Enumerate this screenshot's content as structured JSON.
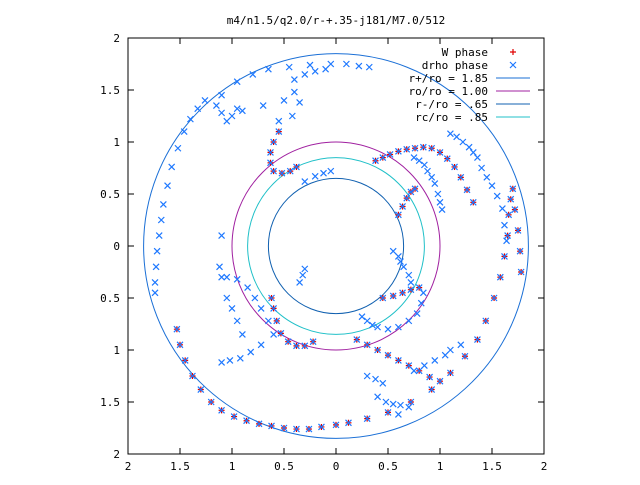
{
  "chart_data": {
    "type": "scatter",
    "title": "m4/n1.5/q2.0/r-+.35-j181/M7.0/512",
    "xlabel": "",
    "ylabel": "",
    "xlim": [
      -2,
      2
    ],
    "ylim": [
      -2,
      2
    ],
    "x_ticks": [
      -2,
      -1.5,
      -1,
      -0.5,
      0,
      0.5,
      1,
      1.5,
      2
    ],
    "y_ticks": [
      2,
      1.5,
      1,
      0.5,
      0,
      -0.5,
      -1,
      -1.5,
      -2
    ],
    "x_tick_labels": [
      "2",
      "1.5",
      "1",
      "0.5",
      "0",
      "0.5",
      "1",
      "1.5",
      "2"
    ],
    "y_tick_labels": [
      "2",
      "1.5",
      "1",
      "0.5",
      "0",
      "0.5",
      "1",
      "1.5",
      "2"
    ],
    "grid": false,
    "legend_position": "top-right",
    "legend": [
      {
        "label": "W phase",
        "marker": "plus",
        "color": "#e00000"
      },
      {
        "label": "drho phase",
        "marker": "x",
        "color": "#1e78ff"
      },
      {
        "label": "r+/ro = 1.85",
        "marker": "line",
        "color": "#1a6fd6"
      },
      {
        "label": "ro/ro = 1.00",
        "marker": "line",
        "color": "#a020a0"
      },
      {
        "label": "r-/ro = .65",
        "marker": "line",
        "color": "#1060b0"
      },
      {
        "label": "rc/ro = .85",
        "marker": "line",
        "color": "#20c0c8"
      }
    ],
    "circles": [
      {
        "name": "r+/ro",
        "r": 1.85,
        "color": "#1a6fd6"
      },
      {
        "name": "ro/ro",
        "r": 1.0,
        "color": "#a020a0"
      },
      {
        "name": "r-/ro",
        "r": 0.65,
        "color": "#1060b0"
      },
      {
        "name": "rc/ro",
        "r": 0.85,
        "color": "#20c0c8"
      }
    ],
    "series": [
      {
        "name": "W phase",
        "marker": "plus",
        "color": "#e00000",
        "points": [
          [
            -1.53,
            -0.8
          ],
          [
            -1.5,
            -0.95
          ],
          [
            -1.45,
            -1.1
          ],
          [
            -1.38,
            -1.25
          ],
          [
            -1.3,
            -1.38
          ],
          [
            -1.2,
            -1.5
          ],
          [
            -1.1,
            -1.58
          ],
          [
            -0.98,
            -1.64
          ],
          [
            -0.86,
            -1.68
          ],
          [
            -0.74,
            -1.71
          ],
          [
            -0.62,
            -1.73
          ],
          [
            -0.5,
            -1.75
          ],
          [
            -0.38,
            -1.76
          ],
          [
            -0.26,
            -1.76
          ],
          [
            -0.14,
            -1.74
          ],
          [
            0.0,
            -1.72
          ],
          [
            0.12,
            -1.7
          ],
          [
            0.3,
            -1.66
          ],
          [
            0.5,
            -1.6
          ],
          [
            0.72,
            -1.5
          ],
          [
            0.92,
            -1.38
          ],
          [
            1.1,
            -1.22
          ],
          [
            1.24,
            -1.06
          ],
          [
            1.36,
            -0.9
          ],
          [
            1.44,
            -0.72
          ],
          [
            1.52,
            -0.5
          ],
          [
            1.58,
            -0.3
          ],
          [
            1.62,
            -0.1
          ],
          [
            1.65,
            0.1
          ],
          [
            1.66,
            0.3
          ],
          [
            1.68,
            0.45
          ],
          [
            1.7,
            0.55
          ],
          [
            1.72,
            0.35
          ],
          [
            1.75,
            0.15
          ],
          [
            1.77,
            -0.05
          ],
          [
            1.78,
            -0.25
          ],
          [
            0.38,
            0.82
          ],
          [
            0.45,
            0.85
          ],
          [
            0.52,
            0.88
          ],
          [
            0.6,
            0.91
          ],
          [
            0.68,
            0.93
          ],
          [
            0.76,
            0.94
          ],
          [
            0.84,
            0.95
          ],
          [
            0.92,
            0.94
          ],
          [
            1.0,
            0.9
          ],
          [
            1.07,
            0.84
          ],
          [
            1.14,
            0.76
          ],
          [
            1.2,
            0.66
          ],
          [
            1.26,
            0.54
          ],
          [
            1.32,
            0.42
          ],
          [
            0.6,
            0.3
          ],
          [
            0.64,
            0.38
          ],
          [
            0.68,
            0.46
          ],
          [
            0.72,
            0.52
          ],
          [
            0.76,
            0.55
          ],
          [
            -0.55,
            1.1
          ],
          [
            -0.6,
            1.0
          ],
          [
            -0.63,
            0.9
          ],
          [
            -0.63,
            0.8
          ],
          [
            -0.6,
            0.72
          ],
          [
            -0.52,
            0.7
          ],
          [
            -0.44,
            0.72
          ],
          [
            -0.38,
            0.76
          ],
          [
            -0.62,
            -0.5
          ],
          [
            -0.6,
            -0.6
          ],
          [
            -0.57,
            -0.72
          ],
          [
            -0.53,
            -0.84
          ],
          [
            -0.46,
            -0.92
          ],
          [
            -0.38,
            -0.96
          ],
          [
            -0.3,
            -0.96
          ],
          [
            -0.22,
            -0.92
          ],
          [
            0.45,
            -0.5
          ],
          [
            0.55,
            -0.48
          ],
          [
            0.64,
            -0.45
          ],
          [
            0.72,
            -0.42
          ],
          [
            0.8,
            -0.4
          ],
          [
            0.2,
            -0.9
          ],
          [
            0.3,
            -0.95
          ],
          [
            0.4,
            -1.0
          ],
          [
            0.5,
            -1.05
          ],
          [
            0.6,
            -1.1
          ],
          [
            0.7,
            -1.15
          ],
          [
            0.8,
            -1.2
          ],
          [
            0.9,
            -1.26
          ],
          [
            1.0,
            -1.3
          ]
        ]
      },
      {
        "name": "drho phase",
        "marker": "x",
        "color": "#1e78ff",
        "points": [
          [
            -1.53,
            -0.8
          ],
          [
            -1.5,
            -0.95
          ],
          [
            -1.45,
            -1.1
          ],
          [
            -1.38,
            -1.25
          ],
          [
            -1.3,
            -1.38
          ],
          [
            -1.2,
            -1.5
          ],
          [
            -1.1,
            -1.58
          ],
          [
            -0.98,
            -1.64
          ],
          [
            -0.86,
            -1.68
          ],
          [
            -0.74,
            -1.71
          ],
          [
            -0.62,
            -1.73
          ],
          [
            -0.5,
            -1.75
          ],
          [
            -0.38,
            -1.76
          ],
          [
            -0.26,
            -1.76
          ],
          [
            -0.14,
            -1.74
          ],
          [
            0.0,
            -1.72
          ],
          [
            0.12,
            -1.7
          ],
          [
            0.3,
            -1.66
          ],
          [
            0.5,
            -1.6
          ],
          [
            0.72,
            -1.5
          ],
          [
            0.92,
            -1.38
          ],
          [
            1.1,
            -1.22
          ],
          [
            1.24,
            -1.06
          ],
          [
            1.36,
            -0.9
          ],
          [
            1.44,
            -0.72
          ],
          [
            1.52,
            -0.5
          ],
          [
            1.58,
            -0.3
          ],
          [
            1.62,
            -0.1
          ],
          [
            1.65,
            0.1
          ],
          [
            1.66,
            0.3
          ],
          [
            1.68,
            0.45
          ],
          [
            1.7,
            0.55
          ],
          [
            1.72,
            0.35
          ],
          [
            1.75,
            0.15
          ],
          [
            1.77,
            -0.05
          ],
          [
            1.78,
            -0.25
          ],
          [
            0.38,
            0.82
          ],
          [
            0.45,
            0.85
          ],
          [
            0.52,
            0.88
          ],
          [
            0.6,
            0.91
          ],
          [
            0.68,
            0.93
          ],
          [
            0.76,
            0.94
          ],
          [
            0.84,
            0.95
          ],
          [
            0.92,
            0.94
          ],
          [
            1.0,
            0.9
          ],
          [
            1.07,
            0.84
          ],
          [
            1.14,
            0.76
          ],
          [
            1.2,
            0.66
          ],
          [
            1.26,
            0.54
          ],
          [
            1.32,
            0.42
          ],
          [
            0.6,
            0.3
          ],
          [
            0.64,
            0.38
          ],
          [
            0.68,
            0.46
          ],
          [
            0.72,
            0.52
          ],
          [
            0.76,
            0.55
          ],
          [
            -0.55,
            1.1
          ],
          [
            -0.6,
            1.0
          ],
          [
            -0.63,
            0.9
          ],
          [
            -0.63,
            0.8
          ],
          [
            -0.6,
            0.72
          ],
          [
            -0.52,
            0.7
          ],
          [
            -0.44,
            0.72
          ],
          [
            -0.38,
            0.76
          ],
          [
            -0.62,
            -0.5
          ],
          [
            -0.6,
            -0.6
          ],
          [
            -0.57,
            -0.72
          ],
          [
            -0.53,
            -0.84
          ],
          [
            -0.46,
            -0.92
          ],
          [
            -0.38,
            -0.96
          ],
          [
            -0.3,
            -0.96
          ],
          [
            -0.22,
            -0.92
          ],
          [
            0.45,
            -0.5
          ],
          [
            0.55,
            -0.48
          ],
          [
            0.64,
            -0.45
          ],
          [
            0.72,
            -0.42
          ],
          [
            0.8,
            -0.4
          ],
          [
            0.2,
            -0.9
          ],
          [
            0.3,
            -0.95
          ],
          [
            0.4,
            -1.0
          ],
          [
            0.5,
            -1.05
          ],
          [
            0.6,
            -1.1
          ],
          [
            0.7,
            -1.15
          ],
          [
            0.8,
            -1.2
          ],
          [
            0.9,
            -1.26
          ],
          [
            1.0,
            -1.3
          ],
          [
            -1.74,
            -0.45
          ],
          [
            -1.74,
            -0.35
          ],
          [
            -1.73,
            -0.2
          ],
          [
            -1.72,
            -0.05
          ],
          [
            -1.7,
            0.1
          ],
          [
            -1.68,
            0.25
          ],
          [
            -1.66,
            0.4
          ],
          [
            -1.62,
            0.58
          ],
          [
            -1.58,
            0.76
          ],
          [
            -1.52,
            0.94
          ],
          [
            -1.46,
            1.1
          ],
          [
            -1.4,
            1.22
          ],
          [
            -1.33,
            1.32
          ],
          [
            -1.26,
            1.4
          ],
          [
            -1.1,
            1.45
          ],
          [
            -0.95,
            1.58
          ],
          [
            -0.8,
            1.65
          ],
          [
            -0.65,
            1.7
          ],
          [
            -0.45,
            1.72
          ],
          [
            -0.25,
            1.74
          ],
          [
            -0.05,
            1.75
          ],
          [
            0.1,
            1.75
          ],
          [
            0.22,
            1.73
          ],
          [
            0.32,
            1.72
          ],
          [
            -0.4,
            1.6
          ],
          [
            -0.3,
            1.65
          ],
          [
            -0.2,
            1.68
          ],
          [
            -0.1,
            1.7
          ],
          [
            -0.9,
            1.3
          ],
          [
            -0.7,
            1.35
          ],
          [
            -0.5,
            1.4
          ],
          [
            -0.4,
            1.48
          ],
          [
            -0.35,
            1.38
          ],
          [
            -0.42,
            1.25
          ],
          [
            -0.55,
            1.2
          ],
          [
            -0.95,
            1.32
          ],
          [
            -1.0,
            1.25
          ],
          [
            -1.05,
            1.2
          ],
          [
            -1.1,
            1.28
          ],
          [
            -1.15,
            1.35
          ],
          [
            -1.1,
            0.1
          ],
          [
            -1.12,
            -0.2
          ],
          [
            -1.1,
            -0.3
          ],
          [
            -1.05,
            -0.3
          ],
          [
            -0.95,
            -0.32
          ],
          [
            -0.85,
            -0.4
          ],
          [
            -0.78,
            -0.5
          ],
          [
            -0.72,
            -0.6
          ],
          [
            -0.65,
            -0.72
          ],
          [
            -0.6,
            -0.85
          ],
          [
            -0.72,
            -0.95
          ],
          [
            -0.82,
            -1.02
          ],
          [
            -0.92,
            -1.08
          ],
          [
            -1.02,
            -1.1
          ],
          [
            -1.1,
            -1.12
          ],
          [
            -0.9,
            -0.85
          ],
          [
            -0.95,
            -0.72
          ],
          [
            -1.0,
            -0.6
          ],
          [
            -1.05,
            -0.5
          ],
          [
            -0.3,
            0.62
          ],
          [
            -0.2,
            0.67
          ],
          [
            -0.12,
            0.7
          ],
          [
            -0.05,
            0.72
          ],
          [
            -0.35,
            -0.35
          ],
          [
            -0.32,
            -0.28
          ],
          [
            -0.3,
            -0.22
          ],
          [
            0.25,
            -0.68
          ],
          [
            0.3,
            -0.72
          ],
          [
            0.35,
            -0.76
          ],
          [
            0.4,
            -0.78
          ],
          [
            0.5,
            -0.8
          ],
          [
            0.6,
            -0.78
          ],
          [
            0.7,
            -0.72
          ],
          [
            0.78,
            -0.65
          ],
          [
            0.82,
            -0.55
          ],
          [
            0.84,
            -0.45
          ],
          [
            0.3,
            -1.25
          ],
          [
            0.38,
            -1.28
          ],
          [
            0.45,
            -1.32
          ],
          [
            0.4,
            -1.45
          ],
          [
            0.48,
            -1.5
          ],
          [
            0.55,
            -1.52
          ],
          [
            0.62,
            -1.53
          ],
          [
            0.7,
            -1.55
          ],
          [
            0.6,
            -1.62
          ],
          [
            0.75,
            -1.2
          ],
          [
            0.85,
            -1.15
          ],
          [
            0.95,
            -1.1
          ],
          [
            1.05,
            -1.05
          ],
          [
            1.1,
            -1.0
          ],
          [
            1.2,
            -0.95
          ],
          [
            1.1,
            1.08
          ],
          [
            1.16,
            1.05
          ],
          [
            1.22,
            1.0
          ],
          [
            1.28,
            0.95
          ],
          [
            1.32,
            0.9
          ],
          [
            1.36,
            0.85
          ],
          [
            1.4,
            0.75
          ],
          [
            1.45,
            0.66
          ],
          [
            1.5,
            0.58
          ],
          [
            1.55,
            0.48
          ],
          [
            1.6,
            0.36
          ],
          [
            1.62,
            0.2
          ],
          [
            1.64,
            0.05
          ],
          [
            0.75,
            0.85
          ],
          [
            0.8,
            0.82
          ],
          [
            0.85,
            0.78
          ],
          [
            0.88,
            0.72
          ],
          [
            0.92,
            0.66
          ],
          [
            0.95,
            0.6
          ],
          [
            0.98,
            0.5
          ],
          [
            1.0,
            0.42
          ],
          [
            1.02,
            0.35
          ],
          [
            0.55,
            -0.05
          ],
          [
            0.6,
            -0.1
          ],
          [
            0.62,
            -0.15
          ],
          [
            0.65,
            -0.2
          ],
          [
            0.7,
            -0.28
          ],
          [
            0.72,
            -0.35
          ]
        ]
      }
    ]
  }
}
